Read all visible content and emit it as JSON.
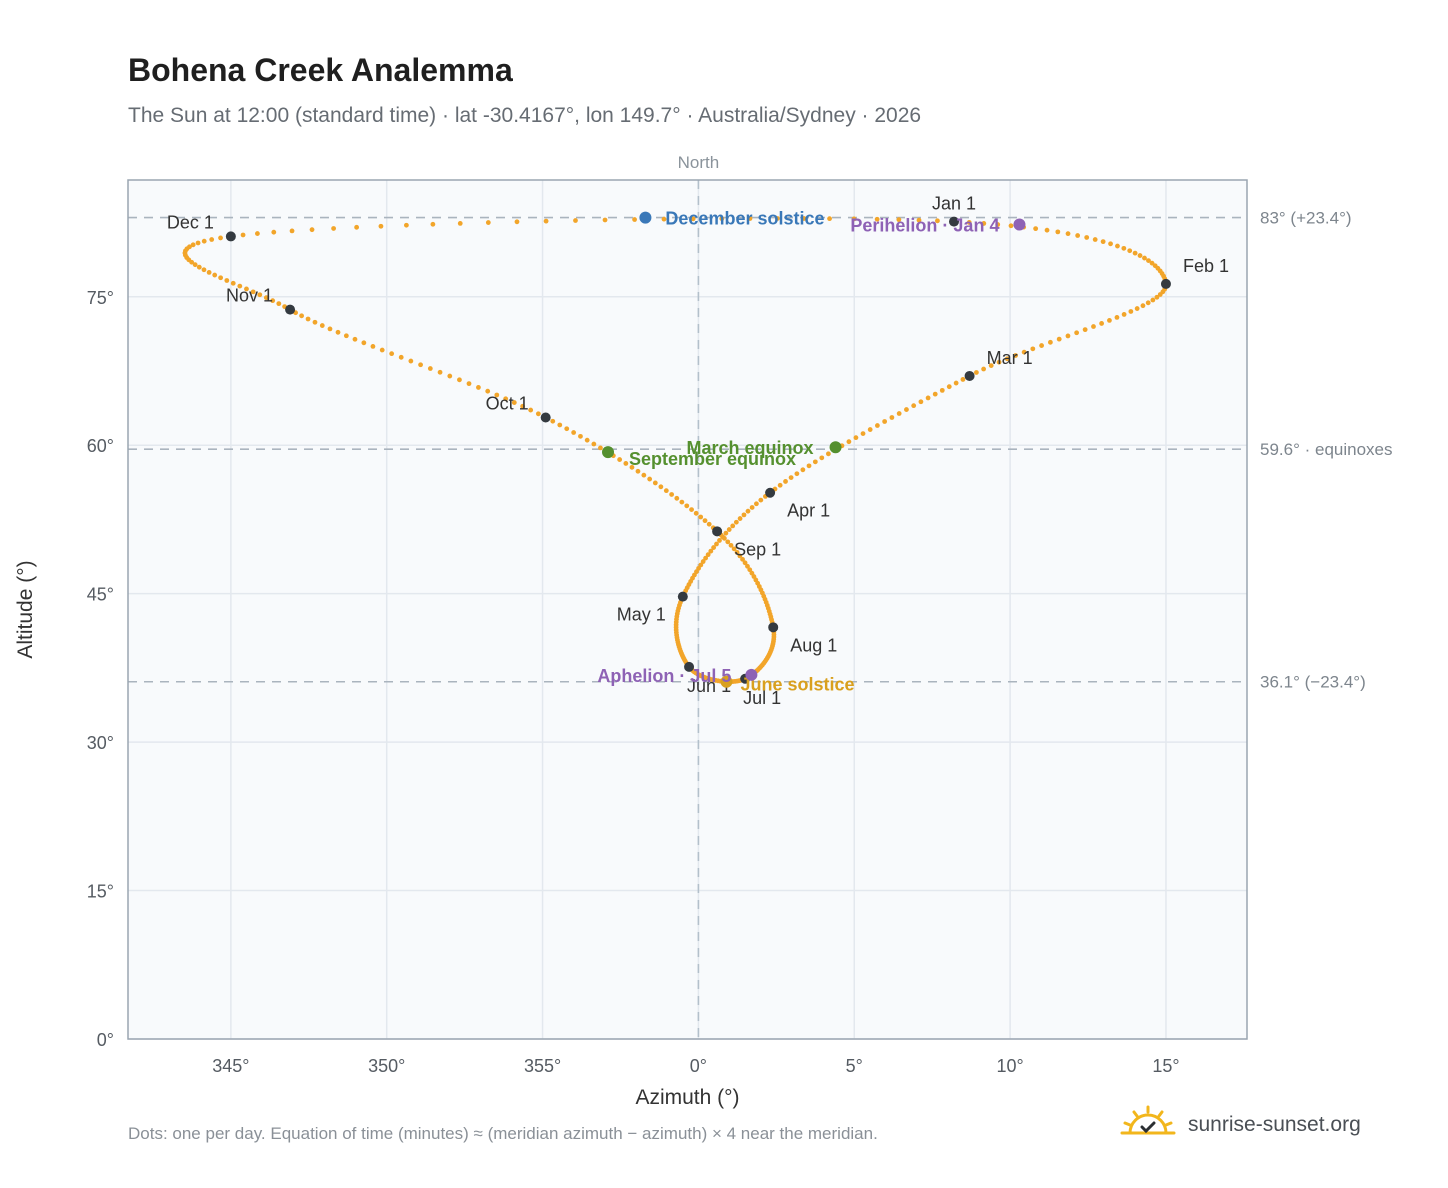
{
  "title": "Bohena Creek Analemma",
  "subtitle": "The Sun at 12:00 (standard time) · lat -30.4167°, lon 149.7° · Australia/Sydney · 2026",
  "footnote": "Dots: one per day. Equation of time (minutes) ≈ (meridian azimuth − azimuth) × 4 near the meridian.",
  "brand": {
    "text": "sunrise-sunset.org",
    "icon": "sun-logo-icon"
  },
  "colors": {
    "path": "#f2a52a",
    "month_marker": "#343a40",
    "equinox": "#55902f",
    "december_solstice": "#3a78b8",
    "june_solstice": "#d9a01e",
    "apsis": "#8e62b5",
    "grid": "#e3e8ee",
    "frame": "#9aa5b1",
    "plot_bg": "#f8fafc"
  },
  "chart_data": {
    "type": "scatter",
    "xlabel": "Azimuth (°)",
    "ylabel": "Altitude (°)",
    "xlim": [
      341.7,
      17.6
    ],
    "ylim": [
      0,
      86.8
    ],
    "x_ticks": [
      "345°",
      "350°",
      "355°",
      "0°",
      "5°",
      "10°",
      "15°"
    ],
    "y_ticks": [
      "0°",
      "15°",
      "30°",
      "45°",
      "60°",
      "75°"
    ],
    "north_label": "North",
    "reference_lines": [
      {
        "altitude": 83.0,
        "label": "83° (+23.4°)"
      },
      {
        "altitude": 59.6,
        "label": "59.6° · equinoxes"
      },
      {
        "altitude": 36.1,
        "label": "36.1° (−23.4°)"
      }
    ],
    "path_control_points": [
      {
        "date": "Jan 1",
        "az": 8.2,
        "alt": 82.6
      },
      {
        "date": "Feb 1",
        "az": 15.0,
        "alt": 76.3
      },
      {
        "date": "Mar 1",
        "az": 8.7,
        "alt": 67.0
      },
      {
        "date": "Apr 1",
        "az": 2.3,
        "alt": 55.2
      },
      {
        "date": "May 1",
        "az": -0.5,
        "alt": 44.7
      },
      {
        "date": "Jun 1",
        "az": -0.3,
        "alt": 37.6
      },
      {
        "date": "Jul 1",
        "az": 1.5,
        "alt": 36.4
      },
      {
        "date": "Aug 1",
        "az": 2.4,
        "alt": 41.6
      },
      {
        "date": "Sep 1",
        "az": 0.6,
        "alt": 51.3
      },
      {
        "date": "Oct 1",
        "az": -4.9,
        "alt": 62.8
      },
      {
        "date": "Nov 1",
        "az": -13.1,
        "alt": 73.7
      },
      {
        "date": "Dec 1",
        "az": -15.0,
        "alt": 81.1
      }
    ],
    "month_markers": [
      {
        "label": "Jan 1",
        "az": 8.2,
        "alt": 82.6,
        "pos": "above"
      },
      {
        "label": "Feb 1",
        "az": 15.0,
        "alt": 76.3,
        "pos": "right-up"
      },
      {
        "label": "Mar 1",
        "az": 8.7,
        "alt": 67.0,
        "pos": "right-up"
      },
      {
        "label": "Apr 1",
        "az": 2.3,
        "alt": 55.2,
        "pos": "right-down"
      },
      {
        "label": "May 1",
        "az": -0.5,
        "alt": 44.7,
        "pos": "left-down"
      },
      {
        "label": "Jun 1",
        "az": -0.3,
        "alt": 37.6,
        "pos": "below-right"
      },
      {
        "label": "Jul 1",
        "az": 1.5,
        "alt": 36.4,
        "pos": "below-right"
      },
      {
        "label": "Aug 1",
        "az": 2.4,
        "alt": 41.6,
        "pos": "right-down"
      },
      {
        "label": "Sep 1",
        "az": 0.6,
        "alt": 51.3,
        "pos": "right-down"
      },
      {
        "label": "Oct 1",
        "az": -4.9,
        "alt": 62.8,
        "pos": "left-up"
      },
      {
        "label": "Nov 1",
        "az": -13.1,
        "alt": 73.7,
        "pos": "left-up"
      },
      {
        "label": "Dec 1",
        "az": -15.0,
        "alt": 81.1,
        "pos": "left-up"
      }
    ],
    "events": [
      {
        "label": "December solstice",
        "az": -1.7,
        "alt": 83.0,
        "kind": "december_solstice"
      },
      {
        "label": "Perihelion · Jan 4",
        "az": 10.3,
        "alt": 82.3,
        "kind": "apsis"
      },
      {
        "label": "March equinox",
        "az": 4.4,
        "alt": 59.8,
        "kind": "equinox"
      },
      {
        "label": "September equinox",
        "az": -2.9,
        "alt": 59.3,
        "kind": "equinox"
      },
      {
        "label": "June solstice",
        "az": 0.9,
        "alt": 36.1,
        "kind": "june_solstice"
      },
      {
        "label": "Aphelion · Jul 5",
        "az": 1.7,
        "alt": 36.8,
        "kind": "apsis"
      }
    ]
  }
}
